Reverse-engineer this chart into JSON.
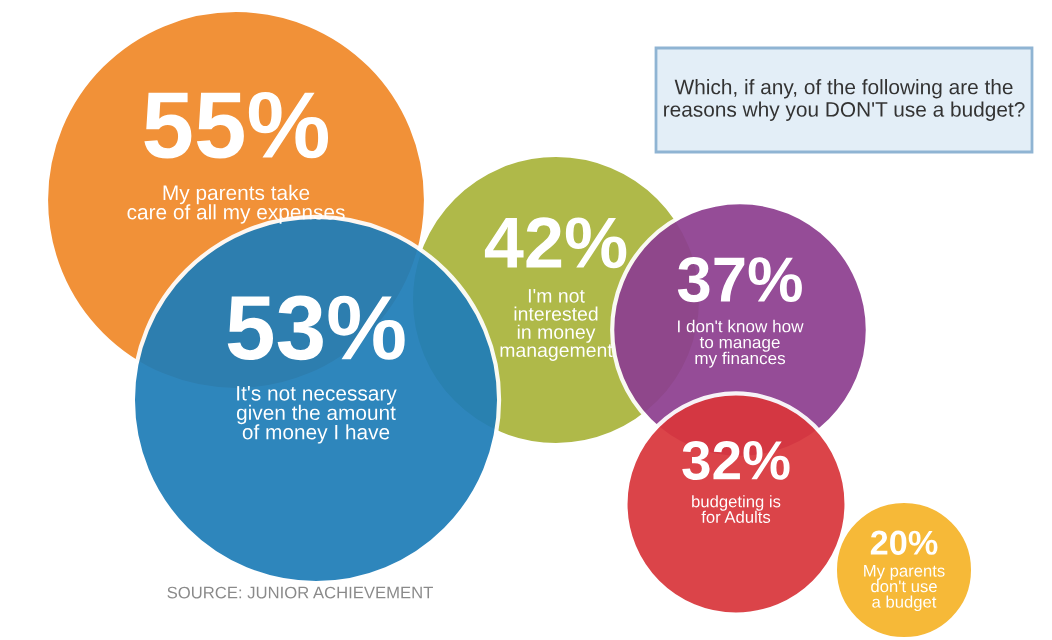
{
  "chart_data": {
    "type": "other",
    "title": "Which, if any, of the following are the reasons why you DON'T use a budget?",
    "categories": [
      "My parents take care of all my expenses",
      "It's not necessary given the amount of money I have",
      "I'm not interested in money management",
      "I don't know how to manage my finances",
      "budgeting is for Adults",
      "My parents don't use a budget"
    ],
    "values": [
      55,
      53,
      42,
      37,
      32,
      20
    ],
    "colors": [
      "#f0892a",
      "#1f7db8",
      "#a9b43c",
      "#8d3f90",
      "#d9363c",
      "#f6b42a"
    ],
    "value_labels": [
      "55%",
      "53%",
      "42%",
      "37%",
      "32%",
      "20%"
    ],
    "annotations": [
      "SOURCE: JUNIOR ACHIEVEMENT"
    ]
  }
}
